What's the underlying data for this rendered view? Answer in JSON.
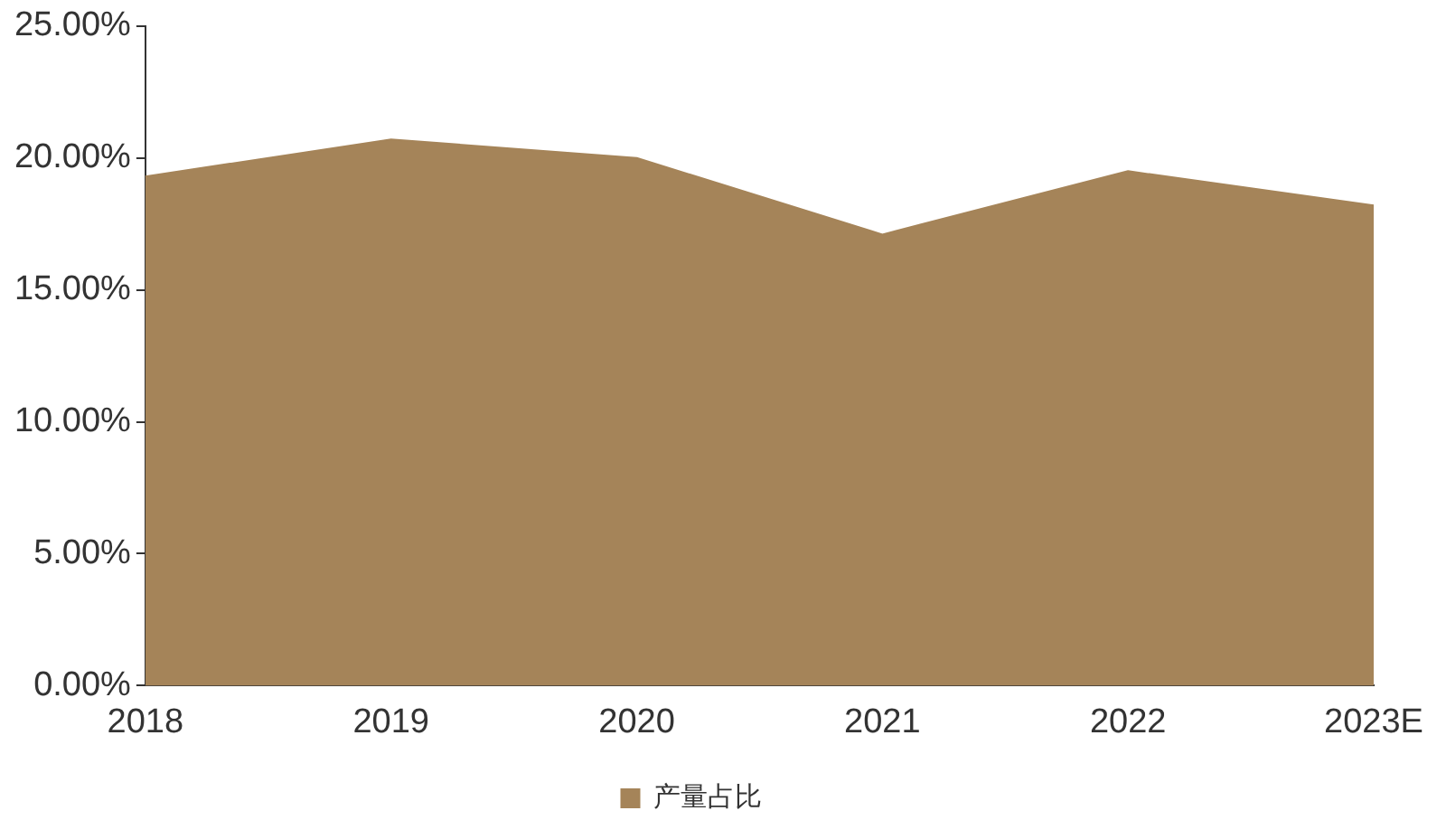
{
  "chart_data": {
    "type": "area",
    "categories": [
      "2018",
      "2019",
      "2020",
      "2021",
      "2022",
      "2023E"
    ],
    "series": [
      {
        "name": "产量占比",
        "color": "#a58459",
        "values": [
          19.3,
          20.7,
          20.0,
          17.1,
          19.5,
          18.2
        ]
      }
    ],
    "ylim": [
      0,
      25
    ],
    "yticks": [
      {
        "value": 0,
        "label": "0.00%"
      },
      {
        "value": 5,
        "label": "5.00%"
      },
      {
        "value": 10,
        "label": "10.00%"
      },
      {
        "value": 15,
        "label": "15.00%"
      },
      {
        "value": 20,
        "label": "20.00%"
      },
      {
        "value": 25,
        "label": "25.00%"
      }
    ],
    "grid": false,
    "legend": "bottom"
  }
}
